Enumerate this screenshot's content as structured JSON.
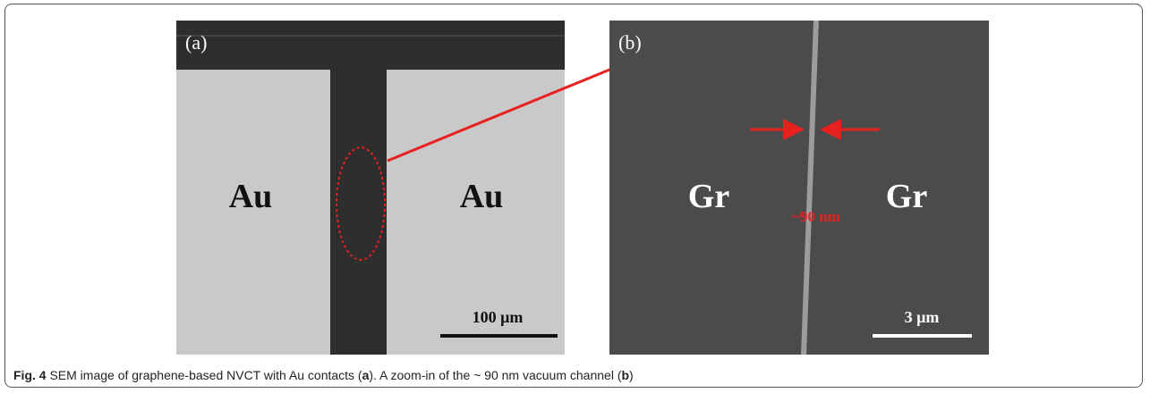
{
  "figure": {
    "panels": [
      {
        "label": "(a)",
        "left_region": "Au",
        "right_region": "Au",
        "scale_bar": "100 μm"
      },
      {
        "label": "(b)",
        "left_region": "Gr",
        "right_region": "Gr",
        "gap_label": "~90 nm",
        "scale_bar": "3 μm"
      }
    ],
    "caption": {
      "label": "Fig. 4",
      "segments": [
        {
          "text": " SEM image of graphene-based NVCT with Au contacts (",
          "bold": false
        },
        {
          "text": "a",
          "bold": true
        },
        {
          "text": "). A zoom-in of the ~ 90 nm vacuum channel (",
          "bold": false
        },
        {
          "text": "b",
          "bold": true
        },
        {
          "text": ")",
          "bold": false
        }
      ]
    }
  }
}
